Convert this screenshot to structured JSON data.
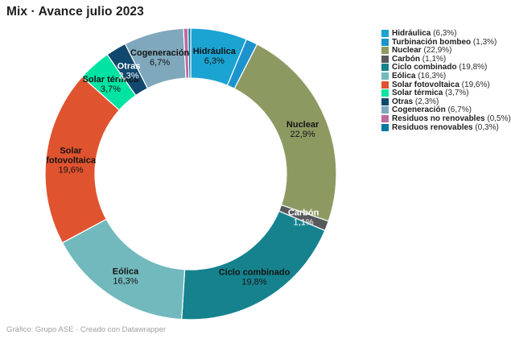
{
  "title": "Mix · Avance julio 2023",
  "footer": "Gráfico: Grupo ASE · Creado con Datawrapper",
  "colors": {
    "background": "#ffffff",
    "title_text": "#1d1d1d",
    "footer_text": "#9e9e9e",
    "slice_label_dark": "#141414",
    "slice_label_light": "#ffffff",
    "separator": "#ffffff"
  },
  "chart_data": {
    "type": "pie",
    "donut": true,
    "title": "Mix · Avance julio 2023",
    "legend_position": "right",
    "direction": "clockwise",
    "start_angle_deg": 0,
    "slices": [
      {
        "label": "Hidráulica",
        "value": 6.3,
        "display": "6,3%",
        "color": "#1BA3D2",
        "slice_label": true,
        "label_color": "dark"
      },
      {
        "label": "Turbinación bombeo",
        "value": 1.3,
        "display": "1,3%",
        "color": "#1D93CE",
        "slice_label": false,
        "label_color": "dark"
      },
      {
        "label": "Nuclear",
        "value": 22.9,
        "display": "22,9%",
        "color": "#8C9A62",
        "slice_label": true,
        "label_color": "dark"
      },
      {
        "label": "Carbón",
        "value": 1.1,
        "display": "1,1%",
        "color": "#58595B",
        "slice_label": true,
        "label_color": "light"
      },
      {
        "label": "Ciclo combinado",
        "value": 19.8,
        "display": "19,8%",
        "color": "#16828E",
        "slice_label": true,
        "label_color": "dark"
      },
      {
        "label": "Eólica",
        "value": 16.3,
        "display": "16,3%",
        "color": "#72B9BD",
        "slice_label": true,
        "label_color": "dark"
      },
      {
        "label": "Solar fotovoltaica",
        "value": 19.6,
        "display": "19,6%",
        "color": "#E0532F",
        "slice_label": true,
        "label_color": "dark",
        "name_lines": [
          "Solar",
          "fotovoltaica"
        ]
      },
      {
        "label": "Solar térmica",
        "value": 3.7,
        "display": "3,7%",
        "color": "#00E3A2",
        "slice_label": true,
        "label_color": "dark"
      },
      {
        "label": "Otras",
        "value": 2.3,
        "display": "2,3%",
        "color": "#10486E",
        "slice_label": true,
        "label_color": "light"
      },
      {
        "label": "Cogeneración",
        "value": 6.7,
        "display": "6,7%",
        "color": "#7FA8BC",
        "slice_label": true,
        "label_color": "dark"
      },
      {
        "label": "Residuos no renovables",
        "value": 0.5,
        "display": "0,5%",
        "color": "#C0699F",
        "slice_label": false,
        "label_color": "dark"
      },
      {
        "label": "Residuos renovables",
        "value": 0.3,
        "display": "0,3%",
        "color": "#0179A5",
        "slice_label": false,
        "label_color": "dark"
      }
    ]
  }
}
